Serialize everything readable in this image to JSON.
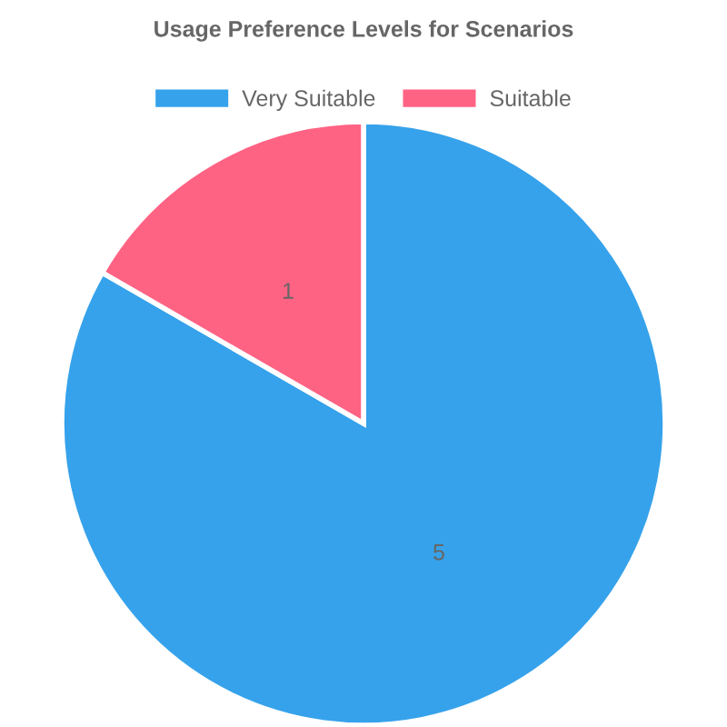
{
  "chart_data": {
    "type": "pie",
    "title": "Usage Preference Levels for Scenarios",
    "categories": [
      "Very Suitable",
      "Suitable"
    ],
    "values": [
      5,
      1
    ],
    "colors": [
      "#36a2eb",
      "#ff6384"
    ],
    "data_labels": true,
    "legend": "top"
  }
}
